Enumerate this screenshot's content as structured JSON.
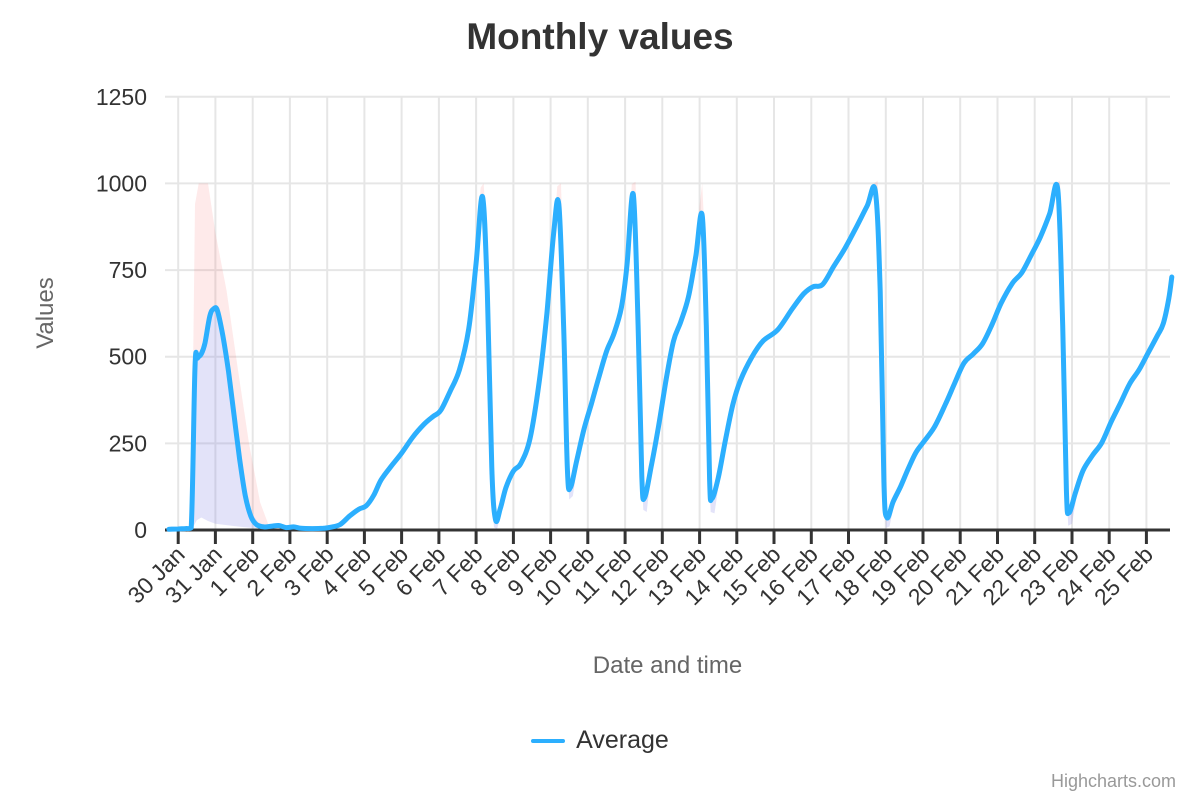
{
  "credits": {
    "label": "Highcharts.com"
  },
  "chart_data": {
    "type": "line",
    "title": "Monthly values",
    "xlabel": "Date and time",
    "ylabel": "Values",
    "ylim": [
      0,
      1250
    ],
    "yticks": [
      0,
      250,
      500,
      750,
      1000,
      1250
    ],
    "categories": [
      "30 Jan",
      "31 Jan",
      "1 Feb",
      "2 Feb",
      "3 Feb",
      "4 Feb",
      "5 Feb",
      "6 Feb",
      "7 Feb",
      "8 Feb",
      "9 Feb",
      "10 Feb",
      "11 Feb",
      "12 Feb",
      "13 Feb",
      "14 Feb",
      "15 Feb",
      "16 Feb",
      "17 Feb",
      "18 Feb",
      "19 Feb",
      "20 Feb",
      "21 Feb",
      "22 Feb",
      "23 Feb",
      "24 Feb",
      "25 Feb"
    ],
    "legend_label": "Average",
    "grid": true,
    "legend_position": "bottom",
    "colors": {
      "line": "#2caffe",
      "band_pink": "rgba(244,91,91,0.13)",
      "band_purple": "rgba(116,116,226,0.20)",
      "grid": "#e6e6e6",
      "axis": "#333333",
      "axis_title": "#666666",
      "tick_text": "#333333",
      "credits_text": "#999999"
    },
    "series": [
      {
        "name": "Average",
        "type": "line",
        "color": "#2caffe",
        "points": [
          [
            -0.25,
            2
          ],
          [
            0,
            3
          ],
          [
            0.2,
            4
          ],
          [
            0.35,
            6
          ],
          [
            0.45,
            470
          ],
          [
            0.52,
            496
          ],
          [
            0.62,
            508
          ],
          [
            0.72,
            540
          ],
          [
            0.85,
            618
          ],
          [
            0.95,
            638
          ],
          [
            1.05,
            634
          ],
          [
            1.2,
            560
          ],
          [
            1.35,
            458
          ],
          [
            1.5,
            330
          ],
          [
            1.65,
            205
          ],
          [
            1.8,
            100
          ],
          [
            1.95,
            40
          ],
          [
            2.1,
            16
          ],
          [
            2.3,
            9
          ],
          [
            2.5,
            11
          ],
          [
            2.7,
            13
          ],
          [
            2.9,
            7
          ],
          [
            3.1,
            9
          ],
          [
            3.3,
            5
          ],
          [
            3.6,
            4
          ],
          [
            3.9,
            5
          ],
          [
            4.1,
            8
          ],
          [
            4.35,
            16
          ],
          [
            4.6,
            40
          ],
          [
            4.85,
            60
          ],
          [
            5.05,
            70
          ],
          [
            5.25,
            100
          ],
          [
            5.45,
            145
          ],
          [
            5.75,
            188
          ],
          [
            6.0,
            222
          ],
          [
            6.3,
            268
          ],
          [
            6.6,
            305
          ],
          [
            6.85,
            328
          ],
          [
            7.05,
            345
          ],
          [
            7.3,
            400
          ],
          [
            7.55,
            462
          ],
          [
            7.8,
            580
          ],
          [
            8.0,
            770
          ],
          [
            8.17,
            962
          ],
          [
            8.3,
            690
          ],
          [
            8.42,
            180
          ],
          [
            8.52,
            30
          ],
          [
            8.65,
            62
          ],
          [
            8.8,
            122
          ],
          [
            9.0,
            170
          ],
          [
            9.2,
            192
          ],
          [
            9.45,
            265
          ],
          [
            9.7,
            432
          ],
          [
            9.9,
            625
          ],
          [
            10.08,
            855
          ],
          [
            10.22,
            940
          ],
          [
            10.35,
            590
          ],
          [
            10.45,
            175
          ],
          [
            10.53,
            122
          ],
          [
            10.7,
            200
          ],
          [
            10.9,
            292
          ],
          [
            11.1,
            366
          ],
          [
            11.3,
            442
          ],
          [
            11.5,
            515
          ],
          [
            11.7,
            566
          ],
          [
            11.9,
            642
          ],
          [
            12.05,
            762
          ],
          [
            12.22,
            968
          ],
          [
            12.35,
            590
          ],
          [
            12.45,
            155
          ],
          [
            12.52,
            92
          ],
          [
            12.7,
            182
          ],
          [
            12.9,
            300
          ],
          [
            13.1,
            432
          ],
          [
            13.3,
            545
          ],
          [
            13.5,
            602
          ],
          [
            13.7,
            672
          ],
          [
            13.9,
            790
          ],
          [
            14.07,
            908
          ],
          [
            14.18,
            590
          ],
          [
            14.27,
            145
          ],
          [
            14.33,
            90
          ],
          [
            14.5,
            150
          ],
          [
            14.7,
            262
          ],
          [
            14.9,
            365
          ],
          [
            15.1,
            432
          ],
          [
            15.4,
            498
          ],
          [
            15.7,
            545
          ],
          [
            16.1,
            578
          ],
          [
            16.5,
            640
          ],
          [
            16.8,
            682
          ],
          [
            17.05,
            702
          ],
          [
            17.3,
            708
          ],
          [
            17.6,
            760
          ],
          [
            17.9,
            812
          ],
          [
            18.2,
            872
          ],
          [
            18.5,
            935
          ],
          [
            18.72,
            978
          ],
          [
            18.85,
            690
          ],
          [
            18.95,
            140
          ],
          [
            19.03,
            36
          ],
          [
            19.2,
            82
          ],
          [
            19.4,
            126
          ],
          [
            19.6,
            176
          ],
          [
            19.8,
            222
          ],
          [
            20.0,
            252
          ],
          [
            20.3,
            296
          ],
          [
            20.6,
            362
          ],
          [
            20.85,
            424
          ],
          [
            21.1,
            482
          ],
          [
            21.35,
            508
          ],
          [
            21.6,
            538
          ],
          [
            21.85,
            592
          ],
          [
            22.1,
            655
          ],
          [
            22.4,
            712
          ],
          [
            22.65,
            742
          ],
          [
            22.9,
            792
          ],
          [
            23.15,
            845
          ],
          [
            23.4,
            912
          ],
          [
            23.62,
            982
          ],
          [
            23.75,
            590
          ],
          [
            23.85,
            115
          ],
          [
            23.92,
            50
          ],
          [
            24.1,
            110
          ],
          [
            24.3,
            172
          ],
          [
            24.55,
            215
          ],
          [
            24.8,
            252
          ],
          [
            25.05,
            312
          ],
          [
            25.3,
            366
          ],
          [
            25.55,
            422
          ],
          [
            25.8,
            462
          ],
          [
            26.05,
            512
          ],
          [
            26.3,
            562
          ],
          [
            26.45,
            595
          ],
          [
            26.6,
            668
          ],
          [
            26.68,
            730
          ]
        ]
      }
    ],
    "bands": [
      {
        "color_key": "band_pink",
        "points": [
          [
            0.35,
            15,
            15
          ],
          [
            0.45,
            470,
            940
          ],
          [
            0.55,
            500,
            1000
          ],
          [
            0.8,
            610,
            1000
          ],
          [
            1.0,
            640,
            858
          ],
          [
            1.3,
            470,
            690
          ],
          [
            1.6,
            240,
            465
          ],
          [
            1.9,
            55,
            250
          ],
          [
            2.2,
            12,
            80
          ],
          [
            2.45,
            8,
            8
          ]
        ]
      },
      {
        "color_key": "band_pink",
        "points": [
          [
            8.0,
            770,
            770
          ],
          [
            8.12,
            915,
            988
          ],
          [
            8.2,
            938,
            1000
          ],
          [
            8.3,
            690,
            850
          ],
          [
            8.4,
            230,
            330
          ],
          [
            8.48,
            55,
            55
          ]
        ]
      },
      {
        "color_key": "band_pink",
        "points": [
          [
            10.05,
            820,
            820
          ],
          [
            10.18,
            928,
            992
          ],
          [
            10.28,
            870,
            1000
          ],
          [
            10.38,
            420,
            590
          ],
          [
            10.47,
            160,
            160
          ]
        ]
      },
      {
        "color_key": "band_pink",
        "points": [
          [
            12.05,
            762,
            762
          ],
          [
            12.18,
            940,
            998
          ],
          [
            12.28,
            890,
            1005
          ],
          [
            12.38,
            440,
            630
          ],
          [
            12.47,
            135,
            135
          ]
        ]
      },
      {
        "color_key": "band_pink",
        "points": [
          [
            13.9,
            790,
            790
          ],
          [
            14.0,
            878,
            938
          ],
          [
            14.07,
            908,
            1000
          ],
          [
            14.15,
            660,
            820
          ],
          [
            14.22,
            360,
            450
          ],
          [
            14.3,
            110,
            110
          ]
        ]
      },
      {
        "color_key": "band_pink",
        "points": [
          [
            18.5,
            935,
            935
          ],
          [
            18.66,
            962,
            998
          ],
          [
            18.78,
            930,
            1008
          ],
          [
            18.88,
            580,
            730
          ],
          [
            18.98,
            110,
            150
          ],
          [
            19.03,
            40,
            40
          ]
        ]
      },
      {
        "color_key": "band_pink",
        "points": [
          [
            23.4,
            912,
            912
          ],
          [
            23.56,
            968,
            1002
          ],
          [
            23.68,
            920,
            1008
          ],
          [
            23.78,
            530,
            680
          ],
          [
            23.88,
            75,
            115
          ],
          [
            23.93,
            52,
            52
          ]
        ]
      },
      {
        "color_key": "band_purple",
        "points": [
          [
            0.32,
            2,
            2
          ],
          [
            0.42,
            12,
            380
          ],
          [
            0.5,
            28,
            492
          ],
          [
            0.62,
            36,
            510
          ],
          [
            0.8,
            26,
            600
          ],
          [
            1.0,
            18,
            640
          ],
          [
            1.3,
            14,
            465
          ],
          [
            1.6,
            10,
            242
          ],
          [
            1.9,
            7,
            58
          ],
          [
            2.2,
            5,
            14
          ],
          [
            2.55,
            4,
            4
          ]
        ]
      },
      {
        "color_key": "band_purple",
        "points": [
          [
            8.35,
            170,
            170
          ],
          [
            8.48,
            8,
            45
          ],
          [
            8.56,
            2,
            36
          ],
          [
            8.7,
            58,
            85
          ],
          [
            8.85,
            122,
            122
          ]
        ]
      },
      {
        "color_key": "band_purple",
        "points": [
          [
            10.4,
            275,
            275
          ],
          [
            10.5,
            88,
            130
          ],
          [
            10.6,
            98,
            158
          ],
          [
            10.75,
            212,
            212
          ]
        ]
      },
      {
        "color_key": "band_purple",
        "points": [
          [
            12.4,
            245,
            245
          ],
          [
            12.49,
            58,
            100
          ],
          [
            12.58,
            52,
            110
          ],
          [
            12.72,
            182,
            182
          ]
        ]
      },
      {
        "color_key": "band_purple",
        "points": [
          [
            14.2,
            295,
            295
          ],
          [
            14.3,
            52,
            98
          ],
          [
            14.4,
            48,
            112
          ],
          [
            14.55,
            158,
            158
          ]
        ]
      },
      {
        "color_key": "band_purple",
        "points": [
          [
            18.9,
            255,
            255
          ],
          [
            19.0,
            6,
            44
          ],
          [
            19.1,
            10,
            55
          ],
          [
            19.25,
            88,
            88
          ]
        ]
      },
      {
        "color_key": "band_purple",
        "points": [
          [
            23.8,
            245,
            245
          ],
          [
            23.9,
            12,
            55
          ],
          [
            24.0,
            18,
            68
          ],
          [
            24.15,
            112,
            112
          ]
        ]
      }
    ]
  }
}
